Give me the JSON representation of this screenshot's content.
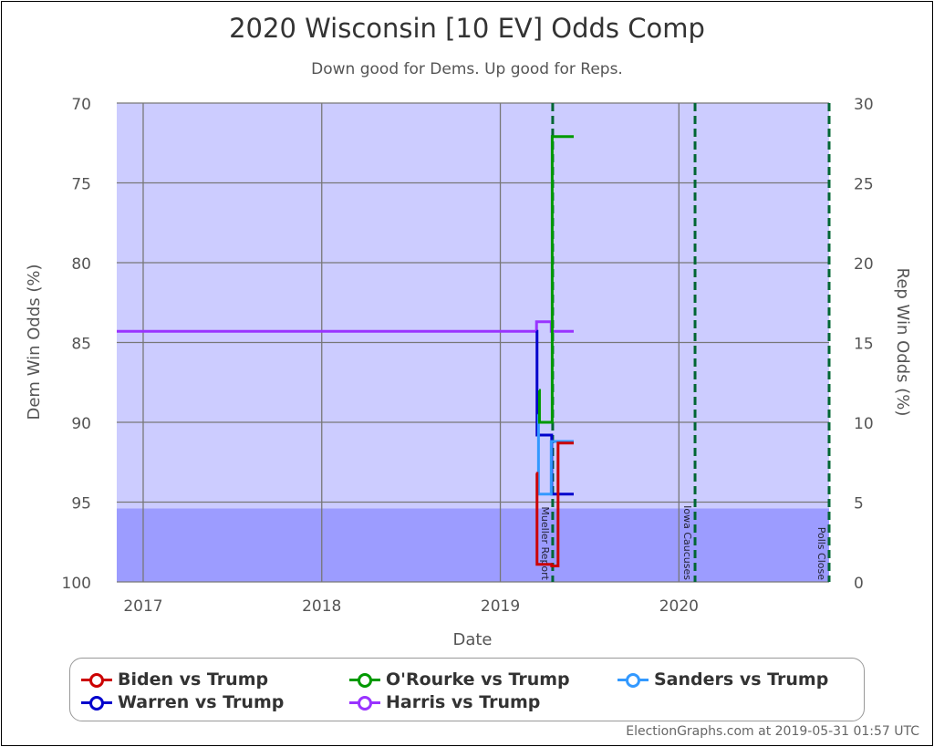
{
  "chart_data": {
    "type": "line",
    "title": "2020 Wisconsin [10 EV] Odds Comp",
    "subtitle": "Down good for Dems. Up good for Reps.",
    "xlabel": "Date",
    "ylabel": "Dem Win Odds (%)",
    "ylabel_right": "Rep Win Odds (%)",
    "xlim": [
      "2016-11-08",
      "2020-11-03"
    ],
    "ylim": [
      70,
      100
    ],
    "y_inverted": true,
    "yticks": [
      "70",
      "75",
      "80",
      "85",
      "90",
      "95",
      "100"
    ],
    "yticks_right": [
      "30",
      "25",
      "20",
      "15",
      "10",
      "5",
      "0"
    ],
    "xticks": [
      {
        "date": "2017-01-01",
        "label": "2017"
      },
      {
        "date": "2018-01-01",
        "label": "2018"
      },
      {
        "date": "2019-01-01",
        "label": "2019"
      },
      {
        "date": "2020-01-01",
        "label": "2020"
      }
    ],
    "grid": true,
    "bands": [
      {
        "from": 95.4,
        "to": 100,
        "color": "#9c9cff"
      },
      {
        "from": 70,
        "to": 95.4,
        "color": "#ccccff"
      }
    ],
    "events": [
      {
        "date": "2019-04-18",
        "label": "Mueller Report"
      },
      {
        "date": "2020-02-03",
        "label": "Iowa Caucuses"
      },
      {
        "date": "2020-11-03",
        "label": "Polls Close"
      }
    ],
    "legend_position": "bottom",
    "series": [
      {
        "name": "Harris vs Trump",
        "color": "#9933ff",
        "points": [
          [
            "2016-11-08",
            84.3
          ],
          [
            "2019-03-16",
            83.7
          ],
          [
            "2019-04-15",
            84.3
          ],
          [
            "2019-05-31",
            84.3
          ]
        ]
      },
      {
        "name": "Warren vs Trump",
        "color": "#0000cc",
        "points": [
          [
            "2019-03-16",
            84.3
          ],
          [
            "2019-03-17",
            90.8
          ],
          [
            "2019-04-16",
            94.5
          ],
          [
            "2019-05-31",
            94.5
          ]
        ]
      },
      {
        "name": "Sanders vs Trump",
        "color": "#3399ff",
        "points": [
          [
            "2019-03-19",
            89.5
          ],
          [
            "2019-03-20",
            94.5
          ],
          [
            "2019-04-15",
            91.2
          ],
          [
            "2019-05-31",
            91.2
          ]
        ]
      },
      {
        "name": "O'Rourke vs Trump",
        "color": "#009900",
        "points": [
          [
            "2019-03-21",
            88.0
          ],
          [
            "2019-03-22",
            90.0
          ],
          [
            "2019-04-17",
            72.1
          ],
          [
            "2019-05-31",
            72.1
          ]
        ]
      },
      {
        "name": "Biden vs Trump",
        "color": "#cc0000",
        "points": [
          [
            "2019-03-15",
            93.2
          ],
          [
            "2019-03-17",
            98.9
          ],
          [
            "2019-04-16",
            99.0
          ],
          [
            "2019-04-29",
            91.3
          ],
          [
            "2019-05-31",
            91.3
          ]
        ]
      }
    ]
  },
  "legend": [
    {
      "label": "Biden vs Trump",
      "color": "#cc0000"
    },
    {
      "label": "O'Rourke vs Trump",
      "color": "#009900"
    },
    {
      "label": "Sanders vs Trump",
      "color": "#3399ff"
    },
    {
      "label": "Warren vs Trump",
      "color": "#0000cc"
    },
    {
      "label": "Harris vs Trump",
      "color": "#9933ff"
    }
  ],
  "credit": "ElectionGraphs.com at 2019-05-31 01:57 UTC"
}
